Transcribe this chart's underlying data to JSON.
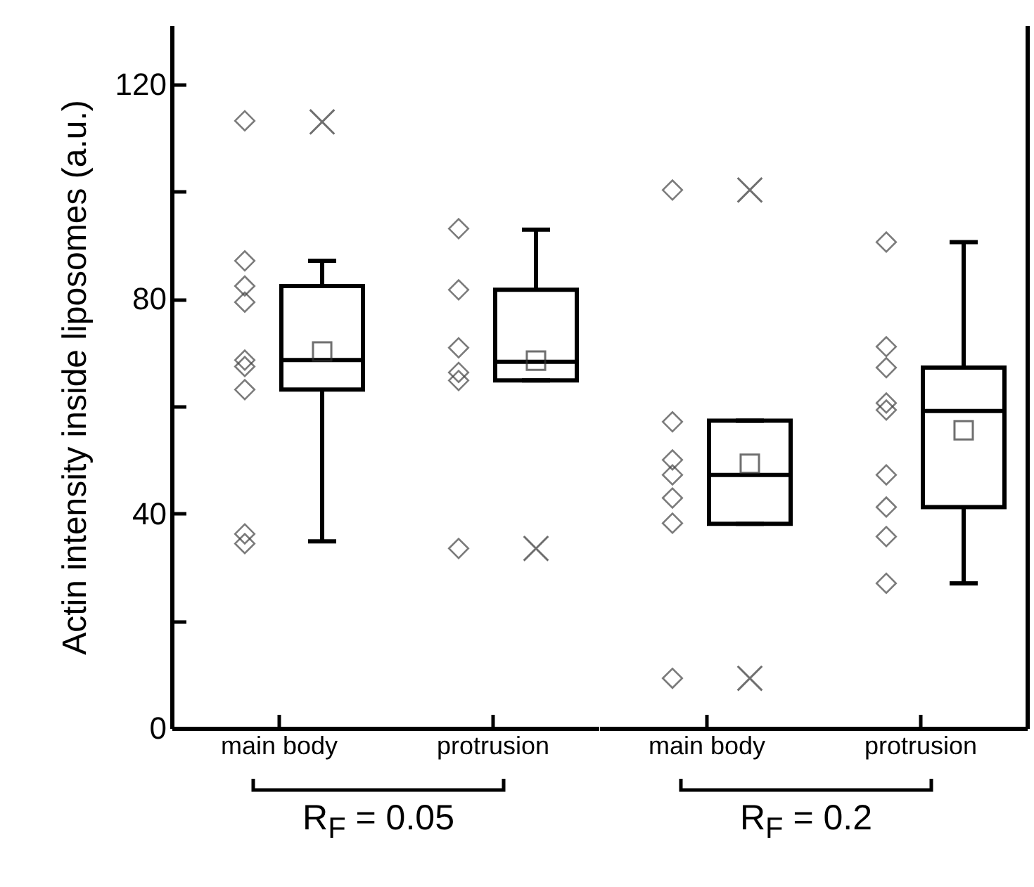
{
  "chart_data": [
    {
      "type": "box",
      "ylabel": "Actin intensity inside liposomes (a.u.)",
      "categories": [
        "main body",
        "protrusion"
      ],
      "ylim": [
        0,
        131
      ],
      "yticks": [
        0,
        {
          "value": 20,
          "label": null
        },
        40,
        {
          "value": 60,
          "label": null
        },
        80,
        {
          "value": 100,
          "label": null
        },
        120
      ],
      "boxes": [
        {
          "low": 34.8,
          "q1": 63.1,
          "median": 68.6,
          "q3": 82.4,
          "high": 87.1,
          "mean": 70.2,
          "outliers": [
            113
          ]
        },
        {
          "low": 64.8,
          "q1": 64.8,
          "median": 68.3,
          "q3": 81.7,
          "high": 92.9,
          "mean": 68.5,
          "outliers": [
            33.5
          ]
        }
      ],
      "series": [
        {
          "type": "scatter",
          "color": "#444444",
          "x": [
            "main body",
            "main body",
            "main body",
            "main body",
            "main body",
            "main body",
            "main body",
            "main body",
            "main body"
          ],
          "values": [
            113.2,
            87.1,
            82.4,
            79.4,
            68.6,
            67.4,
            63.1,
            36.2,
            34.4
          ]
        },
        {
          "type": "scatter",
          "color": "#444444",
          "x": [
            "protrusion",
            "protrusion",
            "protrusion",
            "protrusion",
            "protrusion",
            "protrusion"
          ],
          "values": [
            93.1,
            81.7,
            70.9,
            66.3,
            64.8,
            33.5
          ]
        }
      ],
      "marker": "diamond",
      "annotations": [
        "R$_{F}$ = 0.05"
      ]
    },
    {
      "type": "box",
      "categories": [
        "main body",
        "protrusion"
      ],
      "ylim": [
        0,
        131
      ],
      "tick_labels": "x",
      "boxes": [
        {
          "low": 38.1,
          "q1": 38.1,
          "median": 47.2,
          "q3": 57.3,
          "high": 57.3,
          "mean": 49.3,
          "outliers": [
            100.3,
            9.3
          ]
        },
        {
          "low": 27.0,
          "q1": 41.2,
          "median": 59.1,
          "q3": 67.2,
          "high": 90.6,
          "mean": 55.5
        }
      ],
      "series": [
        {
          "type": "scatter",
          "color": "#444444",
          "x": [
            "main body",
            "main body",
            "main body",
            "main body",
            "main body",
            "main body",
            "main body"
          ],
          "values": [
            100.3,
            57.1,
            50.0,
            47.2,
            42.9,
            38.2,
            9.3
          ]
        },
        {
          "type": "scatter",
          "color": "#444444",
          "x": [
            "protrusion",
            "protrusion",
            "protrusion",
            "protrusion",
            "protrusion",
            "protrusion",
            "protrusion",
            "protrusion",
            "protrusion"
          ],
          "values": [
            90.6,
            71.1,
            67.2,
            60.6,
            59.3,
            47.2,
            41.2,
            35.7,
            27.0
          ]
        }
      ],
      "marker": "diamond",
      "annotations": [
        "R$_{F}$ = 0.2"
      ]
    }
  ]
}
